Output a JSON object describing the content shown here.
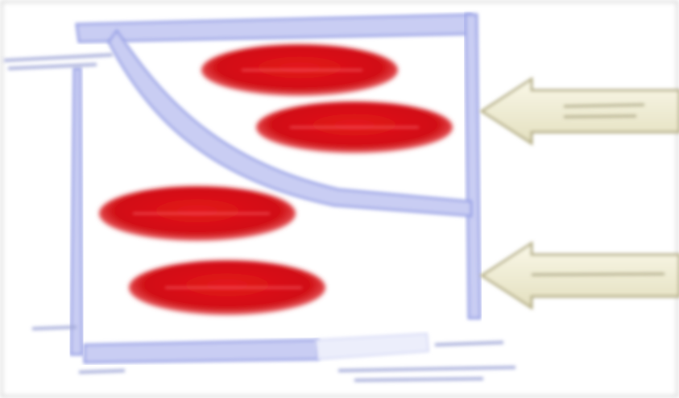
{
  "diagram": {
    "colors": {
      "frame": "#9aa3e6",
      "frame_light": "#c9cdf3",
      "curve": "#b7bdf0",
      "ellipse": "#d10d12",
      "ellipse_highlight": "#ff5a5f",
      "arrow_fill": "#f3f0d6",
      "arrow_stroke": "#b4ad84",
      "label_scribble": "#a2a9d8"
    },
    "ellipses_count": 4,
    "arrows_count": 2
  }
}
